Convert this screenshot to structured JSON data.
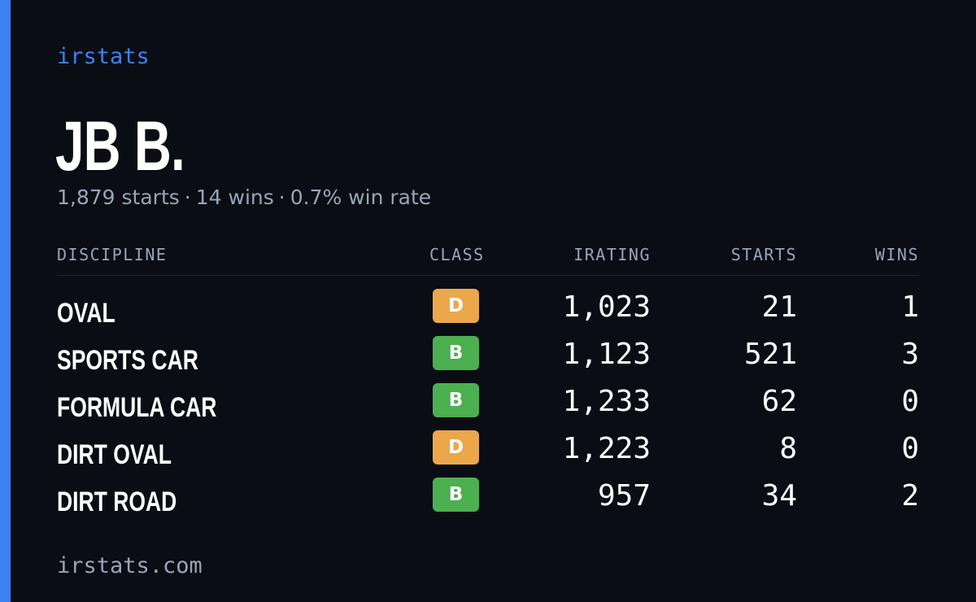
{
  "brand": "irstats",
  "driver": {
    "name": "JB B.",
    "summary": {
      "starts": "1,879 starts",
      "wins": "14 wins",
      "win_rate": "0.7% win rate",
      "separator": "·"
    }
  },
  "table": {
    "headers": {
      "discipline": "DISCIPLINE",
      "class": "CLASS",
      "irating": "IRATING",
      "starts": "STARTS",
      "wins": "WINS"
    },
    "rows": [
      {
        "discipline": "OVAL",
        "class": "D",
        "irating": "1,023",
        "starts": "21",
        "wins": "1"
      },
      {
        "discipline": "SPORTS CAR",
        "class": "B",
        "irating": "1,123",
        "starts": "521",
        "wins": "3"
      },
      {
        "discipline": "FORMULA CAR",
        "class": "B",
        "irating": "1,233",
        "starts": "62",
        "wins": "0"
      },
      {
        "discipline": "DIRT OVAL",
        "class": "D",
        "irating": "1,223",
        "starts": "8",
        "wins": "0"
      },
      {
        "discipline": "DIRT ROAD",
        "class": "B",
        "irating": "957",
        "starts": "34",
        "wins": "2"
      }
    ]
  },
  "colors": {
    "accent": "#3b82f6",
    "background": "#0a0d14",
    "class_B": "#4caf50",
    "class_D": "#eaa84a"
  },
  "footer": "irstats.com"
}
